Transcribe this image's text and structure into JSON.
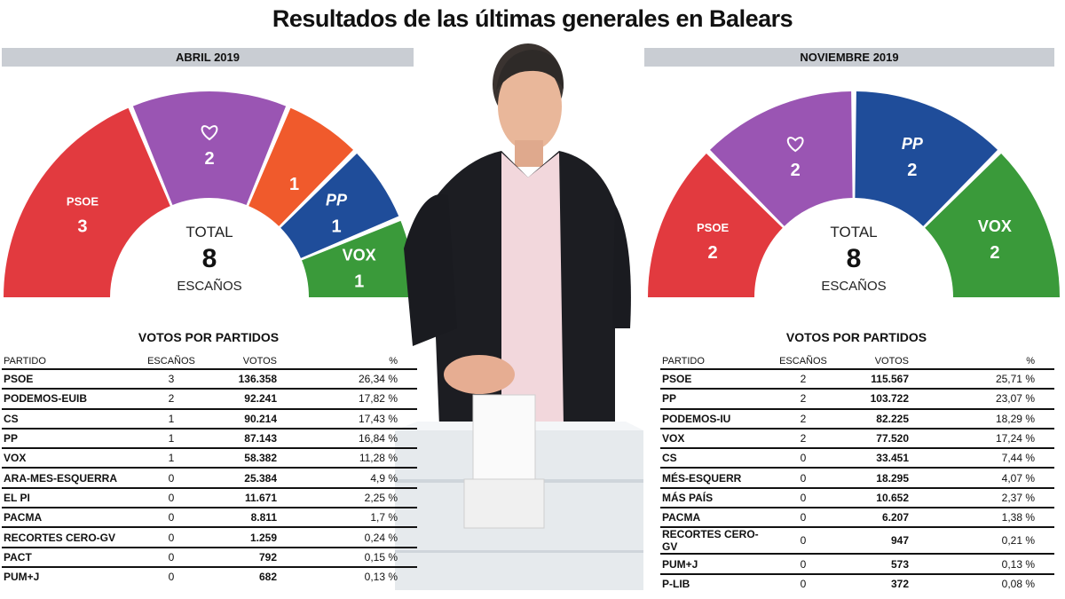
{
  "title": "Resultados de las últimas generales en Balears",
  "colors": {
    "psoe": "#e23a3f",
    "podemos": "#9a55b3",
    "cs": "#f05a2c",
    "pp": "#1f4d9a",
    "vox": "#3a9a3a",
    "banner": "#c9cdd3"
  },
  "center": {
    "total_label": "TOTAL",
    "seats_label": "ESCAÑOS"
  },
  "table_headers": {
    "party": "PARTIDO",
    "seats": "ESCAÑOS",
    "votes": "VOTOS",
    "pct": "%"
  },
  "chart_data": [
    {
      "type": "semi-donut",
      "title": "ABRIL 2019",
      "total": "8",
      "segments": [
        {
          "party": "PSOE",
          "seats": 3,
          "logo": "PSOE",
          "color": "#e23a3f"
        },
        {
          "party": "Podemos",
          "seats": 2,
          "logo": "heart-icon",
          "color": "#9a55b3"
        },
        {
          "party": "Cs",
          "seats": 1,
          "logo": "moon-icon",
          "color": "#f05a2c"
        },
        {
          "party": "PP",
          "seats": 1,
          "logo": "PP",
          "color": "#1f4d9a"
        },
        {
          "party": "VOX",
          "seats": 1,
          "logo": "VOX",
          "color": "#3a9a3a"
        }
      ],
      "table_title": "VOTOS POR PARTIDOS",
      "rows": [
        {
          "party": "PSOE",
          "seats": "3",
          "votes": "136.358",
          "pct": "26,34 %"
        },
        {
          "party": "PODEMOS-EUIB",
          "seats": "2",
          "votes": "92.241",
          "pct": "17,82 %"
        },
        {
          "party": "Cs",
          "seats": "1",
          "votes": "90.214",
          "pct": "17,43 %"
        },
        {
          "party": "PP",
          "seats": "1",
          "votes": "87.143",
          "pct": "16,84 %"
        },
        {
          "party": "VOX",
          "seats": "1",
          "votes": "58.382",
          "pct": "11,28 %"
        },
        {
          "party": "ARA-MES-ESQUERRA",
          "seats": "0",
          "votes": "25.384",
          "pct": "4,9 %"
        },
        {
          "party": "EL PI",
          "seats": "0",
          "votes": "11.671",
          "pct": "2,25 %"
        },
        {
          "party": "PACMA",
          "seats": "0",
          "votes": "8.811",
          "pct": "1,7 %"
        },
        {
          "party": "RECORTES CERO-GV",
          "seats": "0",
          "votes": "1.259",
          "pct": "0,24 %"
        },
        {
          "party": "PACT",
          "seats": "0",
          "votes": "792",
          "pct": "0,15 %"
        },
        {
          "party": "PUM+J",
          "seats": "0",
          "votes": "682",
          "pct": "0,13 %"
        }
      ]
    },
    {
      "type": "semi-donut",
      "title": "NOVIEMBRE 2019",
      "total": "8",
      "segments": [
        {
          "party": "PSOE",
          "seats": 2,
          "logo": "PSOE",
          "color": "#e23a3f"
        },
        {
          "party": "Podemos",
          "seats": 2,
          "logo": "heart-icon",
          "color": "#9a55b3"
        },
        {
          "party": "PP",
          "seats": 2,
          "logo": "PP",
          "color": "#1f4d9a"
        },
        {
          "party": "VOX",
          "seats": 2,
          "logo": "VOX",
          "color": "#3a9a3a"
        }
      ],
      "table_title": "VOTOS POR PARTIDOS",
      "rows": [
        {
          "party": "PSOE",
          "seats": "2",
          "votes": "115.567",
          "pct": "25,71 %"
        },
        {
          "party": "PP",
          "seats": "2",
          "votes": "103.722",
          "pct": "23,07 %"
        },
        {
          "party": "PODEMOS-IU",
          "seats": "2",
          "votes": "82.225",
          "pct": "18,29 %"
        },
        {
          "party": "VOX",
          "seats": "2",
          "votes": "77.520",
          "pct": "17,24 %"
        },
        {
          "party": "Cs",
          "seats": "0",
          "votes": "33.451",
          "pct": "7,44 %"
        },
        {
          "party": "MÉS-ESQUERR",
          "seats": "0",
          "votes": "18.295",
          "pct": "4,07 %"
        },
        {
          "party": "MÁS PAÍS",
          "seats": "0",
          "votes": "10.652",
          "pct": "2,37 %"
        },
        {
          "party": "PACMA",
          "seats": "0",
          "votes": "6.207",
          "pct": "1,38 %"
        },
        {
          "party": "RECORTES CERO-GV",
          "seats": "0",
          "votes": "947",
          "pct": "0,21 %"
        },
        {
          "party": "PUM+J",
          "seats": "0",
          "votes": "573",
          "pct": "0,13 %"
        },
        {
          "party": "P-LIB",
          "seats": "0",
          "votes": "372",
          "pct": "0,08 %"
        }
      ]
    }
  ]
}
